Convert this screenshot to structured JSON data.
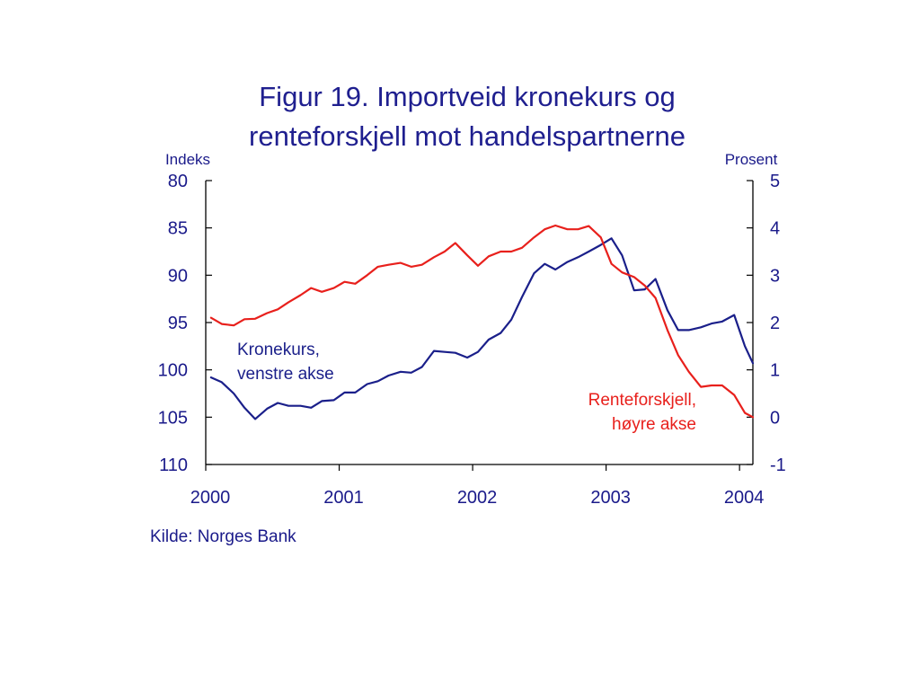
{
  "title_line1": "Figur 19. Importveid kronekurs og",
  "title_line2": "renteforskjell mot handelspartnerne",
  "source": "Kilde: Norges Bank",
  "colors": {
    "text": "#1a1a8a",
    "kronekurs": "#1a1f8a",
    "renteforskjell": "#e8201c",
    "axis": "#000000"
  },
  "chart_data": {
    "type": "line",
    "title": "Figur 19. Importveid kronekurs og renteforskjell mot handelspartnerne",
    "y_left_label": "Indeks",
    "y_right_label": "Prosent",
    "y_left_range": [
      80,
      110
    ],
    "y_left_inverted": true,
    "y_left_ticks": [
      "80",
      "85",
      "90",
      "95",
      "100",
      "105",
      "110"
    ],
    "y_right_range": [
      -1,
      5
    ],
    "y_right_ticks": [
      "5",
      "4",
      "3",
      "2",
      "1",
      "0",
      "-1"
    ],
    "x_range": [
      2000,
      2004.1
    ],
    "x_ticks": [
      "2000",
      "2001",
      "2002",
      "2003",
      "2004"
    ],
    "grid": false,
    "series": [
      {
        "name": "Kronekurs, venstre akse",
        "axis": "left",
        "color": "#1a1f8a",
        "label_lines": [
          "Kronekurs,",
          "venstre akse"
        ],
        "x": [
          2000.04,
          2000.12,
          2000.21,
          2000.29,
          2000.37,
          2000.46,
          2000.54,
          2000.62,
          2000.71,
          2000.79,
          2000.87,
          2000.96,
          2001.04,
          2001.12,
          2001.21,
          2001.29,
          2001.37,
          2001.46,
          2001.54,
          2001.62,
          2001.71,
          2001.79,
          2001.87,
          2001.96,
          2002.04,
          2002.12,
          2002.21,
          2002.29,
          2002.37,
          2002.46,
          2002.54,
          2002.62,
          2002.71,
          2002.79,
          2002.87,
          2002.96,
          2003.04,
          2003.12,
          2003.21,
          2003.29,
          2003.37,
          2003.46,
          2003.54,
          2003.62,
          2003.71,
          2003.79,
          2003.87,
          2003.96,
          2004.04,
          2004.1
        ],
        "values": [
          100.8,
          101.3,
          102.5,
          104.0,
          105.2,
          104.1,
          103.5,
          103.8,
          103.8,
          104.0,
          103.3,
          103.2,
          102.4,
          102.4,
          101.5,
          101.2,
          100.6,
          100.2,
          100.3,
          99.7,
          98.0,
          98.1,
          98.2,
          98.7,
          98.1,
          96.8,
          96.1,
          94.7,
          92.3,
          89.8,
          88.8,
          89.4,
          88.6,
          88.1,
          87.5,
          86.8,
          86.1,
          87.9,
          91.6,
          91.5,
          90.4,
          93.7,
          95.8,
          95.8,
          95.5,
          95.1,
          94.9,
          94.2,
          97.5,
          99.3
        ]
      },
      {
        "name": "Renteforskjell, høyre akse",
        "axis": "right",
        "color": "#e8201c",
        "label_lines": [
          "Renteforskjell,",
          "høyre akse"
        ],
        "x": [
          2000.04,
          2000.12,
          2000.21,
          2000.29,
          2000.37,
          2000.46,
          2000.54,
          2000.62,
          2000.71,
          2000.79,
          2000.87,
          2000.96,
          2001.04,
          2001.12,
          2001.21,
          2001.29,
          2001.37,
          2001.46,
          2001.54,
          2001.62,
          2001.71,
          2001.79,
          2001.87,
          2001.96,
          2002.04,
          2002.12,
          2002.21,
          2002.29,
          2002.37,
          2002.46,
          2002.54,
          2002.62,
          2002.71,
          2002.79,
          2002.87,
          2002.96,
          2003.04,
          2003.12,
          2003.21,
          2003.29,
          2003.37,
          2003.46,
          2003.54,
          2003.62,
          2003.71,
          2003.79,
          2003.87,
          2003.96,
          2004.04,
          2004.1
        ],
        "values": [
          2.1,
          1.97,
          1.94,
          2.07,
          2.08,
          2.2,
          2.28,
          2.43,
          2.58,
          2.73,
          2.65,
          2.73,
          2.86,
          2.82,
          3.0,
          3.18,
          3.22,
          3.26,
          3.18,
          3.22,
          3.38,
          3.5,
          3.68,
          3.42,
          3.2,
          3.4,
          3.5,
          3.5,
          3.58,
          3.8,
          3.97,
          4.05,
          3.97,
          3.97,
          4.04,
          3.8,
          3.24,
          3.06,
          2.96,
          2.78,
          2.52,
          1.84,
          1.31,
          0.96,
          0.64,
          0.67,
          0.67,
          0.47,
          0.09,
          0.0
        ]
      }
    ]
  }
}
